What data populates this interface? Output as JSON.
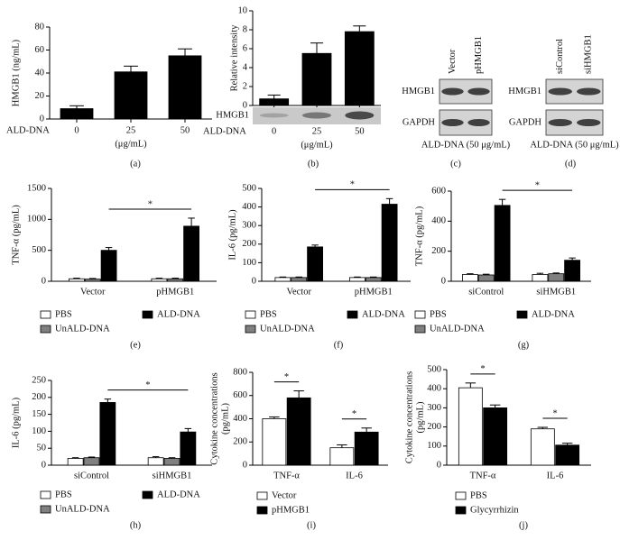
{
  "chart_data": [
    {
      "type": "bar",
      "panel": "(a)",
      "ylabel": "HMGB1 (ng/mL)",
      "xlabel_prefix": "ALD-DNA",
      "xlabel": "(μg/mL)",
      "categories": [
        "0",
        "25",
        "50"
      ],
      "values": [
        9,
        41,
        55
      ],
      "errors": [
        2.5,
        5,
        6
      ],
      "color": "#000000",
      "ylim": [
        0,
        80
      ],
      "yticks": [
        0,
        20,
        40,
        60,
        80
      ]
    },
    {
      "type": "bar",
      "panel": "(b)",
      "ylabel": "Relative intensity",
      "blot_label": "HMGB1",
      "xlabel_prefix": "ALD-DNA",
      "xlabel": "(μg/mL)",
      "categories": [
        "0",
        "25",
        "50"
      ],
      "values": [
        0.7,
        5.5,
        7.8
      ],
      "errors": [
        0.4,
        1.1,
        0.6
      ],
      "color": "#000000",
      "ylim": [
        0,
        10
      ],
      "yticks": [
        0,
        2,
        4,
        6,
        8,
        10
      ]
    },
    {
      "type": "blot",
      "panel": "(c)",
      "lanes": [
        "Vector",
        "pHMGB1"
      ],
      "rows": [
        "HMGB1",
        "GAPDH"
      ],
      "caption": "ALD-DNA (50 μg/mL)"
    },
    {
      "type": "blot",
      "panel": "(d)",
      "lanes": [
        "siControl",
        "siHMGB1"
      ],
      "rows": [
        "HMGB1",
        "GAPDH"
      ],
      "caption": "ALD-DNA (50 μg/mL)"
    },
    {
      "type": "bar",
      "panel": "(e)",
      "ylabel": "TNF-α (pg/mL)",
      "categories": [
        "Vector",
        "pHMGB1"
      ],
      "series": [
        {
          "name": "PBS",
          "color": "#ffffff",
          "values": [
            40,
            40
          ],
          "errors": [
            10,
            10
          ]
        },
        {
          "name": "UnALD-DNA",
          "color": "#808080",
          "values": [
            35,
            40
          ],
          "errors": [
            10,
            10
          ]
        },
        {
          "name": "ALD-DNA",
          "color": "#000000",
          "values": [
            500,
            890
          ],
          "errors": [
            45,
            130
          ]
        }
      ],
      "ylim": [
        0,
        1500
      ],
      "yticks": [
        0,
        500,
        1000,
        1500
      ],
      "significance": [
        "*"
      ]
    },
    {
      "type": "bar",
      "panel": "(f)",
      "ylabel": "IL-6 (pg/mL)",
      "categories": [
        "Vector",
        "pHMGB1"
      ],
      "series": [
        {
          "name": "PBS",
          "color": "#ffffff",
          "values": [
            20,
            20
          ],
          "errors": [
            3,
            3
          ]
        },
        {
          "name": "UnALD-DNA",
          "color": "#808080",
          "values": [
            20,
            20
          ],
          "errors": [
            3,
            3
          ]
        },
        {
          "name": "ALD-DNA",
          "color": "#000000",
          "values": [
            185,
            415
          ],
          "errors": [
            10,
            30
          ]
        }
      ],
      "ylim": [
        0,
        500
      ],
      "yticks": [
        0,
        100,
        200,
        300,
        400,
        500
      ],
      "significance": [
        "*"
      ]
    },
    {
      "type": "bar",
      "panel": "(g)",
      "ylabel": "TNF-α (pg/mL)",
      "categories": [
        "siControl",
        "siHMGB1"
      ],
      "series": [
        {
          "name": "PBS",
          "color": "#ffffff",
          "values": [
            45,
            45
          ],
          "errors": [
            5,
            8
          ]
        },
        {
          "name": "UnALD-DNA",
          "color": "#808080",
          "values": [
            42,
            50
          ],
          "errors": [
            5,
            5
          ]
        },
        {
          "name": "ALD-DNA",
          "color": "#000000",
          "values": [
            505,
            140
          ],
          "errors": [
            40,
            15
          ]
        }
      ],
      "ylim": [
        0,
        600
      ],
      "yticks": [
        0,
        200,
        400,
        600
      ],
      "significance": [
        "*"
      ]
    },
    {
      "type": "bar",
      "panel": "(h)",
      "ylabel": "IL-6 (pg/mL)",
      "categories": [
        "siControl",
        "siHMGB1"
      ],
      "series": [
        {
          "name": "PBS",
          "color": "#ffffff",
          "values": [
            20,
            22
          ],
          "errors": [
            2,
            3
          ]
        },
        {
          "name": "UnALD-DNA",
          "color": "#808080",
          "values": [
            22,
            20
          ],
          "errors": [
            2,
            2
          ]
        },
        {
          "name": "ALD-DNA",
          "color": "#000000",
          "values": [
            185,
            98
          ],
          "errors": [
            10,
            10
          ]
        }
      ],
      "ylim": [
        0,
        250
      ],
      "yticks": [
        0,
        50,
        100,
        150,
        200,
        250
      ],
      "significance": [
        "*"
      ]
    },
    {
      "type": "bar",
      "panel": "(i)",
      "ylabel": [
        "Cytokine concentrations",
        "(pg/mL)"
      ],
      "categories": [
        "TNF-α",
        "IL-6"
      ],
      "series": [
        {
          "name": "Vector",
          "color": "#ffffff",
          "values": [
            400,
            150
          ],
          "errors": [
            15,
            25
          ]
        },
        {
          "name": "pHMGB1",
          "color": "#000000",
          "values": [
            580,
            285
          ],
          "errors": [
            60,
            35
          ]
        }
      ],
      "ylim": [
        0,
        800
      ],
      "yticks": [
        0,
        200,
        400,
        600,
        800
      ],
      "significance": [
        "*",
        "*"
      ]
    },
    {
      "type": "bar",
      "panel": "(j)",
      "ylabel": [
        "Cytokine concentrations",
        "(pg/mL)"
      ],
      "categories": [
        "TNF-α",
        "IL-6"
      ],
      "series": [
        {
          "name": "PBS",
          "color": "#ffffff",
          "values": [
            405,
            190
          ],
          "errors": [
            25,
            8
          ]
        },
        {
          "name": "Glycyrrhizin",
          "color": "#000000",
          "values": [
            300,
            105
          ],
          "errors": [
            15,
            10
          ]
        }
      ],
      "ylim": [
        0,
        500
      ],
      "yticks": [
        0,
        100,
        200,
        300,
        400,
        500
      ],
      "significance": [
        "*",
        "*"
      ]
    }
  ]
}
